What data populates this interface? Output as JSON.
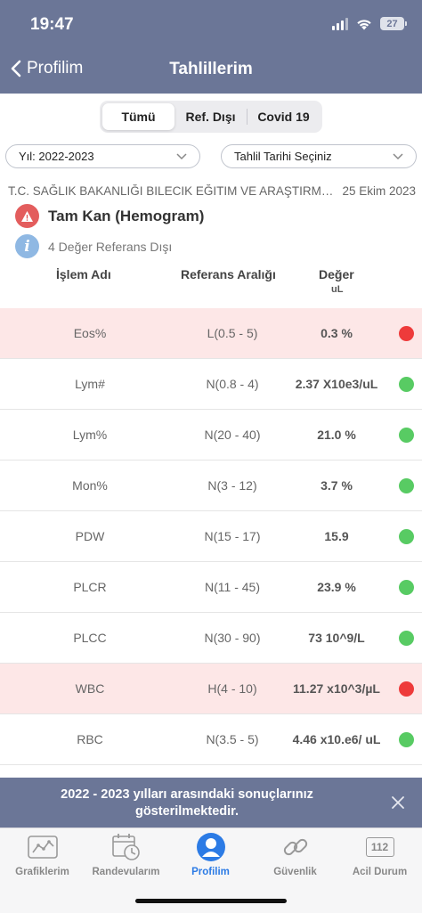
{
  "status": {
    "time": "19:47",
    "battery": "27"
  },
  "nav": {
    "back_label": "Profilim",
    "title": "Tahlillerim"
  },
  "segments": [
    {
      "label": "Tümü",
      "active": true
    },
    {
      "label": "Ref. Dışı",
      "active": false
    },
    {
      "label": "Covid 19",
      "active": false
    }
  ],
  "filters": {
    "year": "Yıl: 2022-2023",
    "date": "Tahlil Tarihi Seçiniz"
  },
  "test": {
    "hospital": "T.C. SAĞLIK BAKANLIĞI BILECIK EĞITIM VE ARAŞTIRMA HASTANESI",
    "date": "25 Ekim 2023",
    "title": "Tam Kan (Hemogram)",
    "info": "4 Değer Referans Dışı"
  },
  "columns": {
    "name": "İşlem Adı",
    "ref": "Referans Aralığı",
    "value": "Değer",
    "value_cut": "uL"
  },
  "rows": [
    {
      "name": "Eos%",
      "ref": "L(0.5 - 5)",
      "value": "0.3 %",
      "status": "red"
    },
    {
      "name": "Lym#",
      "ref": "N(0.8 - 4)",
      "value": "2.37 X10e3/uL",
      "status": "green"
    },
    {
      "name": "Lym%",
      "ref": "N(20 - 40)",
      "value": "21.0 %",
      "status": "green"
    },
    {
      "name": "Mon%",
      "ref": "N(3 - 12)",
      "value": "3.7 %",
      "status": "green"
    },
    {
      "name": "PDW",
      "ref": "N(15 - 17)",
      "value": "15.9",
      "status": "green"
    },
    {
      "name": "PLCR",
      "ref": "N(11 - 45)",
      "value": "23.9 %",
      "status": "green"
    },
    {
      "name": "PLCC",
      "ref": "N(30 - 90)",
      "value": "73 10^9/L",
      "status": "green"
    },
    {
      "name": "WBC",
      "ref": "H(4 - 10)",
      "value": "11.27 x10^3/µL",
      "status": "red"
    },
    {
      "name": "RBC",
      "ref": "N(3.5 - 5)",
      "value": "4.46 x10.e6/ uL",
      "status": "green"
    }
  ],
  "banner": {
    "text": "2022 - 2023 yılları arasındaki sonuçlarınız gösterilmektedir."
  },
  "tabs": [
    {
      "label": "Grafiklerim",
      "icon": "chart-icon",
      "active": false
    },
    {
      "label": "Randevularım",
      "icon": "calendar-clock-icon",
      "active": false
    },
    {
      "label": "Profilim",
      "icon": "profile-icon",
      "active": true
    },
    {
      "label": "Güvenlik",
      "icon": "link-icon",
      "active": false
    },
    {
      "label": "Acil Durum",
      "icon": "emergency-112-icon",
      "badge": "112",
      "active": false
    }
  ],
  "colors": {
    "header": "#6b7697",
    "abnormal_row": "#fde7e7",
    "red_dot": "#ee3b3b",
    "green_dot": "#58cb63",
    "active_tab": "#2c7be5"
  }
}
